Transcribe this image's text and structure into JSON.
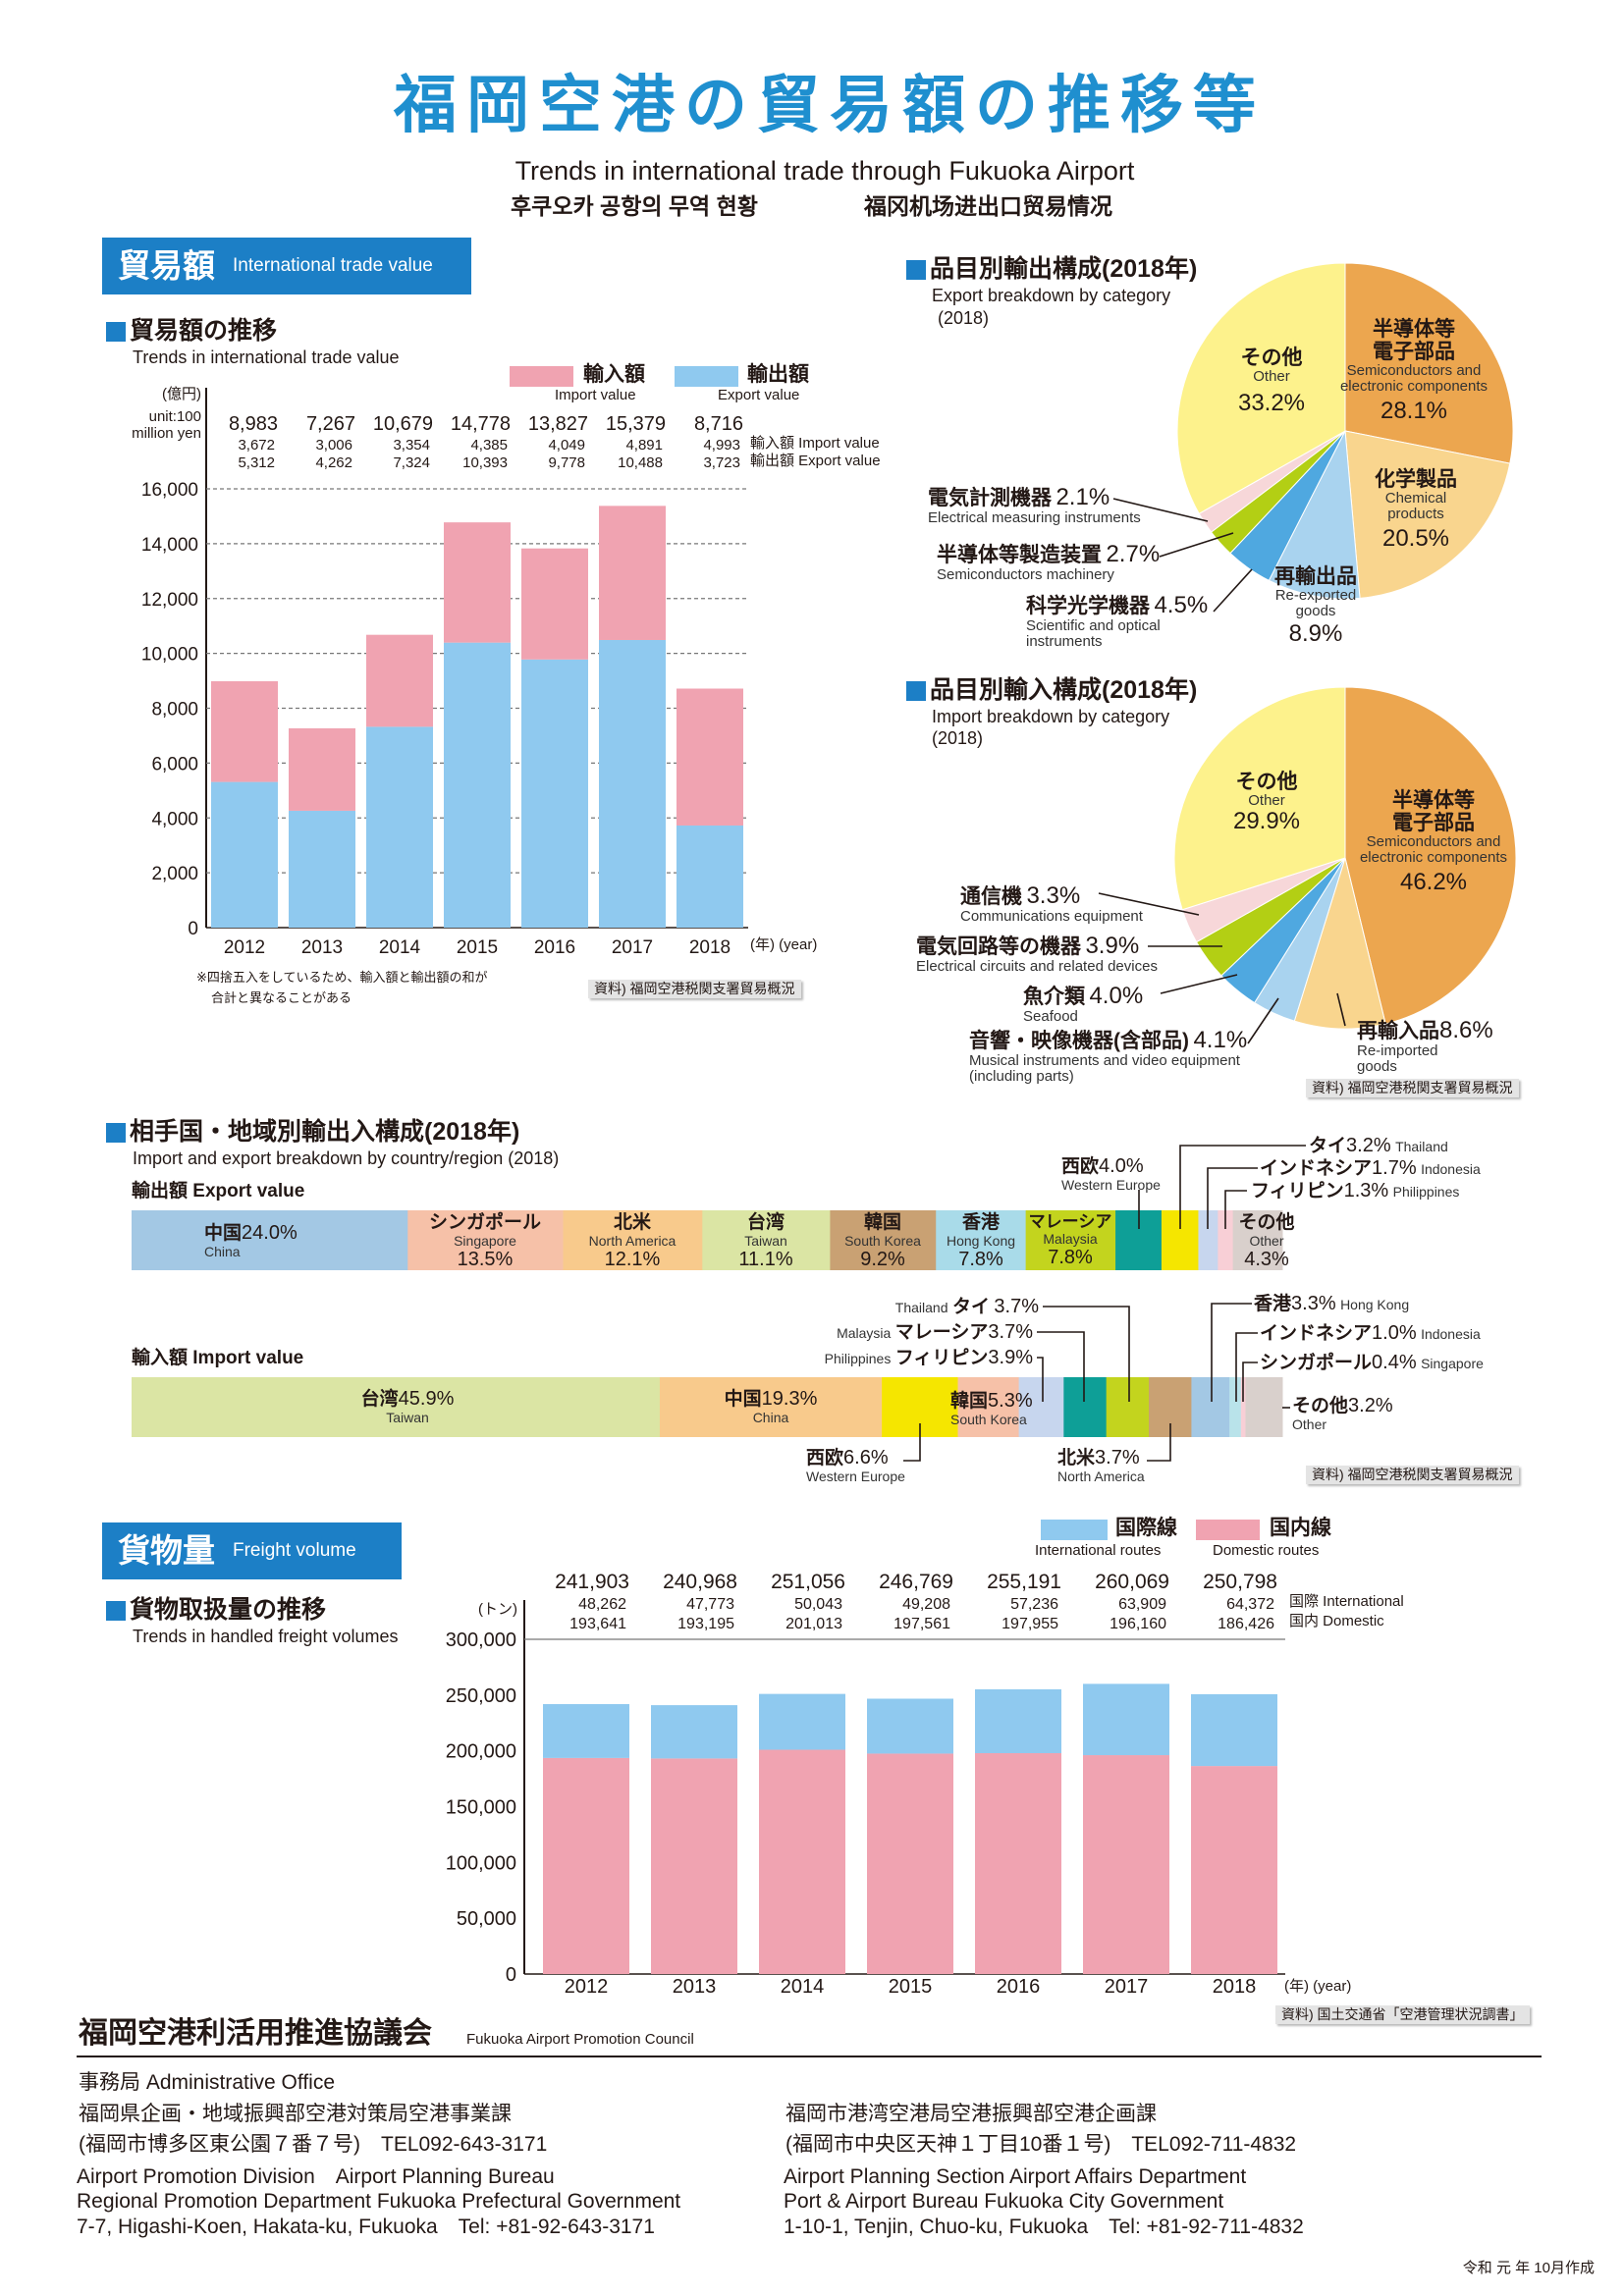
{
  "header": {
    "title": "福岡空港の貿易額の推移等",
    "subtitle_en": "Trends in international trade through Fukuoka Airport",
    "subtitle_ko": "후쿠오카 공항의 무역 현황",
    "subtitle_zh": "福冈机场进出口贸易情况"
  },
  "trade_section": {
    "label_ja": "貿易額",
    "label_en": "International trade value"
  },
  "trade_chart_text": {
    "heading_ja": "貿易額の推移",
    "heading_en": "Trends in international trade value",
    "unit_ja": "(億円)",
    "unit_en_1": "unit:100",
    "unit_en_2": "million yen",
    "legend_import_ja": "輸入額",
    "legend_import_en": "Import value",
    "legend_export_ja": "輸出額",
    "legend_export_en": "Export value",
    "row_import_label": "輸入額 Import value",
    "row_export_label": "輸出額 Export value",
    "year_unit": "(年) (year)",
    "note_1": "※四捨五入をしているため、輸入額と輸出額の和が",
    "note_2": "合計と異なることがある",
    "source": "資料) 福岡空港税関支署貿易概況"
  },
  "export_pie_text": {
    "title": "品目別輸出構成(2018年)",
    "subtitle": "Export breakdown by category",
    "year": "(2018)"
  },
  "import_pie_text": {
    "title": "品目別輸入構成(2018年)",
    "subtitle": "Import breakdown by category",
    "year": "(2018)",
    "source": "資料) 福岡空港税関支署貿易概況"
  },
  "country_text": {
    "title": "相手国・地域別輸出入構成(2018年)",
    "subtitle": "Import and export breakdown by country/region (2018)",
    "export_label": "輸出額 Export value",
    "import_label": "輸入額 Import value",
    "source": "資料) 福岡空港税関支署貿易概況"
  },
  "freight_section": {
    "label_ja": "貨物量",
    "label_en": "Freight volume"
  },
  "freight_chart_text": {
    "heading_ja": "貨物取扱量の推移",
    "heading_en": "Trends in handled freight volumes",
    "unit": "(トン)",
    "legend_intl_ja": "国際線",
    "legend_intl_en": "International routes",
    "legend_dom_ja": "国内線",
    "legend_dom_en": "Domestic routes",
    "row_intl_label": "国際 International",
    "row_dom_label": "国内 Domestic",
    "year_unit": "(年) (year)",
    "source": "資料) 国土交通省「空港管理状況調書」"
  },
  "footer": {
    "council_ja": "福岡空港利活用推進協議会",
    "council_en": "Fukuoka Airport Promotion Council",
    "office": "事務局 Administrative Office",
    "left": [
      "福岡県企画・地域振興部空港対策局空港事業課",
      "(福岡市博多区東公園７番７号)　TEL092-643-3171",
      "Airport Promotion Division　Airport Planning Bureau",
      "Regional Promotion Department Fukuoka Prefectural Government",
      "7-7, Higashi-Koen, Hakata-ku, Fukuoka　Tel: +81-92-643-3171"
    ],
    "right": [
      "福岡市港湾空港局空港振興部空港企画課",
      "(福岡市中央区天神１丁目10番１号)　TEL092-711-4832",
      "Airport Planning Section Airport Affairs Department",
      "Port & Airport Bureau Fukuoka City Government",
      "1-10-1, Tenjin, Chuo-ku, Fukuoka　Tel: +81-92-711-4832"
    ],
    "date": "令和 元 年 10月作成"
  },
  "colors": {
    "brand_blue": "#1f8fcf",
    "import_pink": "#f0a3b1",
    "export_blue": "#8fc9ef"
  },
  "chart_data": [
    {
      "type": "bar",
      "stacked": true,
      "categories": [
        "2012",
        "2013",
        "2014",
        "2015",
        "2016",
        "2017",
        "2018"
      ],
      "totals": [
        8983,
        7267,
        10679,
        14778,
        13827,
        15379,
        8716
      ],
      "series": [
        {
          "name": "輸出額 Export value",
          "values": [
            5312,
            4262,
            7324,
            10393,
            9778,
            10488,
            3723
          ],
          "color": "#8fc9ef"
        },
        {
          "name": "輸入額 Import value",
          "values": [
            3672,
            3006,
            3354,
            4385,
            4049,
            4891,
            4993
          ],
          "color": "#f0a3b1"
        }
      ],
      "ylim": [
        0,
        16000
      ],
      "yticks": [
        0,
        2000,
        4000,
        6000,
        8000,
        10000,
        12000,
        14000,
        16000
      ],
      "grid": true
    },
    {
      "type": "pie",
      "slices": [
        {
          "ja": "半導体等電子部品",
          "en": "Semiconductors and electronic components",
          "pct": "28.1%",
          "color": "#eca64f"
        },
        {
          "ja": "化学製品",
          "en": "Chemical products",
          "pct": "20.5%",
          "color": "#f9d58e"
        },
        {
          "ja": "再輸出品",
          "en": "Re-exported goods",
          "pct": "8.9%",
          "color": "#a9d3ef"
        },
        {
          "ja": "科学光学機器",
          "en": "Scientific and optical instruments",
          "pct": "4.5%",
          "color": "#4fa8e0"
        },
        {
          "ja": "半導体等製造装置",
          "en": "Semiconductors machinery",
          "pct": "2.7%",
          "color": "#b3cf14"
        },
        {
          "ja": "電気計測機器",
          "en": "Electrical measuring instruments",
          "pct": "2.1%",
          "color": "#f7d7d9"
        },
        {
          "ja": "その他",
          "en": "Other",
          "pct": "33.2%",
          "color": "#fdf28c"
        }
      ]
    },
    {
      "type": "pie",
      "slices": [
        {
          "ja": "半導体等電子部品",
          "en": "Semiconductors and electronic components",
          "pct": "46.2%",
          "color": "#eca64f"
        },
        {
          "ja": "再輸入品",
          "en": "Re-imported goods",
          "pct": "8.6%",
          "color": "#f9d58e"
        },
        {
          "ja": "音響・映像機器(含部品)",
          "en": "Musical instruments and video equipment (including parts)",
          "pct": "4.1%",
          "color": "#a9d3ef"
        },
        {
          "ja": "魚介類",
          "en": "Seafood",
          "pct": "4.0%",
          "color": "#4fa8e0"
        },
        {
          "ja": "電気回路等の機器",
          "en": "Electrical circuits and related devices",
          "pct": "3.9%",
          "color": "#b3cf14"
        },
        {
          "ja": "通信機",
          "en": "Communications equipment",
          "pct": "3.3%",
          "color": "#f7d7d9"
        },
        {
          "ja": "その他",
          "en": "Other",
          "pct": "29.9%",
          "color": "#fdf28c"
        }
      ]
    },
    {
      "type": "bar",
      "orientation": "horizontal-100%-stacked",
      "segments": [
        {
          "ja": "中国",
          "en": "China",
          "pct": "24.0%",
          "color": "#a3c8e4"
        },
        {
          "ja": "シンガポール",
          "en": "Singapore",
          "pct": "13.5%",
          "color": "#f6c1a8"
        },
        {
          "ja": "北米",
          "en": "North America",
          "pct": "12.1%",
          "color": "#f8ca8c"
        },
        {
          "ja": "台湾",
          "en": "Taiwan",
          "pct": "11.1%",
          "color": "#dbe5a4"
        },
        {
          "ja": "韓国",
          "en": "South Korea",
          "pct": "9.2%",
          "color": "#c9a173"
        },
        {
          "ja": "香港",
          "en": "Hong Kong",
          "pct": "7.8%",
          "color": "#a9dbe9"
        },
        {
          "ja": "マレーシア",
          "en": "Malaysia",
          "pct": "7.8%",
          "color": "#c3d41e"
        },
        {
          "ja": "西欧",
          "en": "Western Europe",
          "pct": "4.0%",
          "color": "#0e9f97"
        },
        {
          "ja": "タイ",
          "en": "Thailand",
          "pct": "3.2%",
          "color": "#f5e600"
        },
        {
          "ja": "インドネシア",
          "en": "Indonesia",
          "pct": "1.7%",
          "color": "#c7d6ee"
        },
        {
          "ja": "フィリピン",
          "en": "Philippines",
          "pct": "1.3%",
          "color": "#f8cfd6"
        },
        {
          "ja": "その他",
          "en": "Other",
          "pct": "4.3%",
          "color": "#d9d0cc"
        }
      ]
    },
    {
      "type": "bar",
      "orientation": "horizontal-100%-stacked",
      "segments": [
        {
          "ja": "台湾",
          "en": "Taiwan",
          "pct": "45.9%",
          "color": "#dbe5a4"
        },
        {
          "ja": "中国",
          "en": "China",
          "pct": "19.3%",
          "color": "#f8ca8c"
        },
        {
          "ja": "西欧",
          "en": "Western Europe",
          "pct": "6.6%",
          "color": "#f5e600"
        },
        {
          "ja": "韓国",
          "en": "South Korea",
          "pct": "5.3%",
          "color": "#f6c1a8"
        },
        {
          "ja": "フィリピン",
          "en": "Philippines",
          "pct": "3.9%",
          "color": "#c7d6ee"
        },
        {
          "ja": "マレーシア",
          "en": "Malaysia",
          "pct": "3.7%",
          "color": "#0e9f97"
        },
        {
          "ja": "タイ",
          "en": "Thailand",
          "pct": "3.7%",
          "color": "#c3d41e"
        },
        {
          "ja": "北米",
          "en": "North America",
          "pct": "3.7%",
          "color": "#c9a173"
        },
        {
          "ja": "香港",
          "en": "Hong Kong",
          "pct": "3.3%",
          "color": "#a3c8e4"
        },
        {
          "ja": "インドネシア",
          "en": "Indonesia",
          "pct": "1.0%",
          "color": "#b9e3ea"
        },
        {
          "ja": "シンガポール",
          "en": "Singapore",
          "pct": "0.4%",
          "color": "#f8cfd6"
        },
        {
          "ja": "その他",
          "en": "Other",
          "pct": "3.2%",
          "color": "#d9d0cc"
        }
      ]
    },
    {
      "type": "bar",
      "stacked": true,
      "categories": [
        "2012",
        "2013",
        "2014",
        "2015",
        "2016",
        "2017",
        "2018"
      ],
      "totals": [
        241903,
        240968,
        251056,
        246769,
        255191,
        260069,
        250798
      ],
      "series": [
        {
          "name": "国内 Domestic",
          "values": [
            193641,
            193195,
            201013,
            197561,
            197955,
            196160,
            186426
          ],
          "color": "#f0a3b1"
        },
        {
          "name": "国際 International",
          "values": [
            48262,
            47773,
            50043,
            49208,
            57236,
            63909,
            64372
          ],
          "color": "#8fc9ef"
        }
      ],
      "ylim": [
        0,
        300000
      ],
      "yticks": [
        0,
        50000,
        100000,
        150000,
        200000,
        250000,
        300000
      ],
      "grid": false
    }
  ]
}
